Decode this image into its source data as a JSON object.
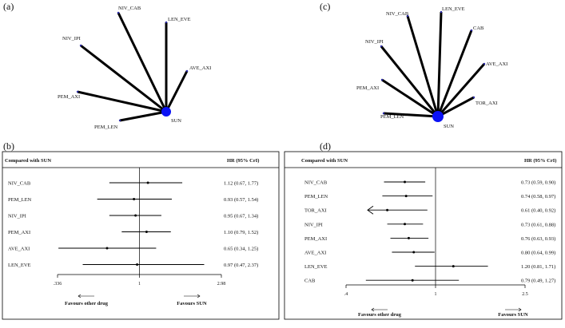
{
  "chart_data": [
    {
      "panel": "(a)",
      "type": "network",
      "center": "SUN",
      "nodes": [
        "NIV_CAB",
        "LEN_EVE",
        "NIV_IPI",
        "AVE_AXI",
        "PEM_AXI",
        "PEM_LEN",
        "SUN"
      ],
      "edges": [
        [
          "SUN",
          "NIV_CAB"
        ],
        [
          "SUN",
          "LEN_EVE"
        ],
        [
          "SUN",
          "NIV_IPI"
        ],
        [
          "SUN",
          "AVE_AXI"
        ],
        [
          "SUN",
          "PEM_AXI"
        ],
        [
          "SUN",
          "PEM_LEN"
        ]
      ]
    },
    {
      "panel": "(c)",
      "type": "network",
      "center": "SUN",
      "nodes": [
        "NIV_CAB",
        "LEN_EVE",
        "CAB",
        "NIV_IPI",
        "AVE_AXI",
        "PEM_AXI",
        "TOR_AXI",
        "PEM_LEN",
        "SUN"
      ],
      "edges": [
        [
          "SUN",
          "NIV_CAB"
        ],
        [
          "SUN",
          "LEN_EVE"
        ],
        [
          "SUN",
          "CAB"
        ],
        [
          "SUN",
          "NIV_IPI"
        ],
        [
          "SUN",
          "AVE_AXI"
        ],
        [
          "SUN",
          "PEM_AXI"
        ],
        [
          "SUN",
          "TOR_AXI"
        ],
        [
          "SUN",
          "PEM_LEN"
        ]
      ]
    },
    {
      "panel": "(b)",
      "type": "forest",
      "header_left": "Compared with SUN",
      "header_right": "HR (95% CrI)",
      "scale": "log",
      "xticks": [
        0.336,
        1,
        2.98
      ],
      "xtick_labels": [
        ".336",
        "1",
        "2.98"
      ],
      "xlim": [
        0.336,
        2.98
      ],
      "favours_left": "Favours other drug",
      "favours_right": "Favours SUN",
      "rows": [
        {
          "label": "NIV_CAB",
          "hr": 1.12,
          "lo": 0.67,
          "hi": 1.77,
          "text": "1.12 (0.67, 1.77)"
        },
        {
          "label": "PEM_LEN",
          "hr": 0.93,
          "lo": 0.57,
          "hi": 1.54,
          "text": "0.93 (0.57, 1.54)"
        },
        {
          "label": "NIV_IPI",
          "hr": 0.95,
          "lo": 0.67,
          "hi": 1.34,
          "text": "0.95 (0.67, 1.34)"
        },
        {
          "label": "PEM_AXI",
          "hr": 1.1,
          "lo": 0.79,
          "hi": 1.52,
          "text": "1.10 (0.79, 1.52)"
        },
        {
          "label": "AVE_AXI",
          "hr": 0.65,
          "lo": 0.34,
          "hi": 1.25,
          "text": "0.65 (0.34, 1.25)"
        },
        {
          "label": "LEN_EVE",
          "hr": 0.97,
          "lo": 0.47,
          "hi": 2.37,
          "text": "0.97 (0.47, 2.37)"
        }
      ]
    },
    {
      "panel": "(d)",
      "type": "forest",
      "header_left": "Compared with SUN",
      "header_right": "HR (95% CrI)",
      "scale": "log",
      "xticks": [
        0.4,
        1,
        2.5
      ],
      "xtick_labels": [
        ".4",
        "1",
        "2.5"
      ],
      "xlim": [
        0.4,
        2.5
      ],
      "favours_left": "Favours other drug",
      "favours_right": "Favours SUN",
      "rows": [
        {
          "label": "NIV_CAB",
          "hr": 0.73,
          "lo": 0.59,
          "hi": 0.9,
          "text": "0.73 (0.59, 0.90)"
        },
        {
          "label": "PEM_LEN",
          "hr": 0.74,
          "lo": 0.58,
          "hi": 0.97,
          "text": "0.74 (0.58, 0.97)"
        },
        {
          "label": "TOR_AXI",
          "hr": 0.61,
          "lo": 0.4,
          "hi": 0.92,
          "text": "0.61 (0.40, 0.92)",
          "arrow_left": true
        },
        {
          "label": "NIV_IPI",
          "hr": 0.73,
          "lo": 0.61,
          "hi": 0.88,
          "text": "0.73 (0.61, 0.88)"
        },
        {
          "label": "PEM_AXI",
          "hr": 0.76,
          "lo": 0.63,
          "hi": 0.93,
          "text": "0.76 (0.63, 0.93)"
        },
        {
          "label": "AVE_AXI",
          "hr": 0.8,
          "lo": 0.64,
          "hi": 0.99,
          "text": "0.80 (0.64, 0.99)"
        },
        {
          "label": "LEN_EVE",
          "hr": 1.2,
          "lo": 0.81,
          "hi": 1.71,
          "text": "1.20 (0.81, 1.71)"
        },
        {
          "label": "CAB",
          "hr": 0.79,
          "lo": 0.49,
          "hi": 1.27,
          "text": "0.79 (0.49, 1.27)"
        }
      ]
    }
  ]
}
